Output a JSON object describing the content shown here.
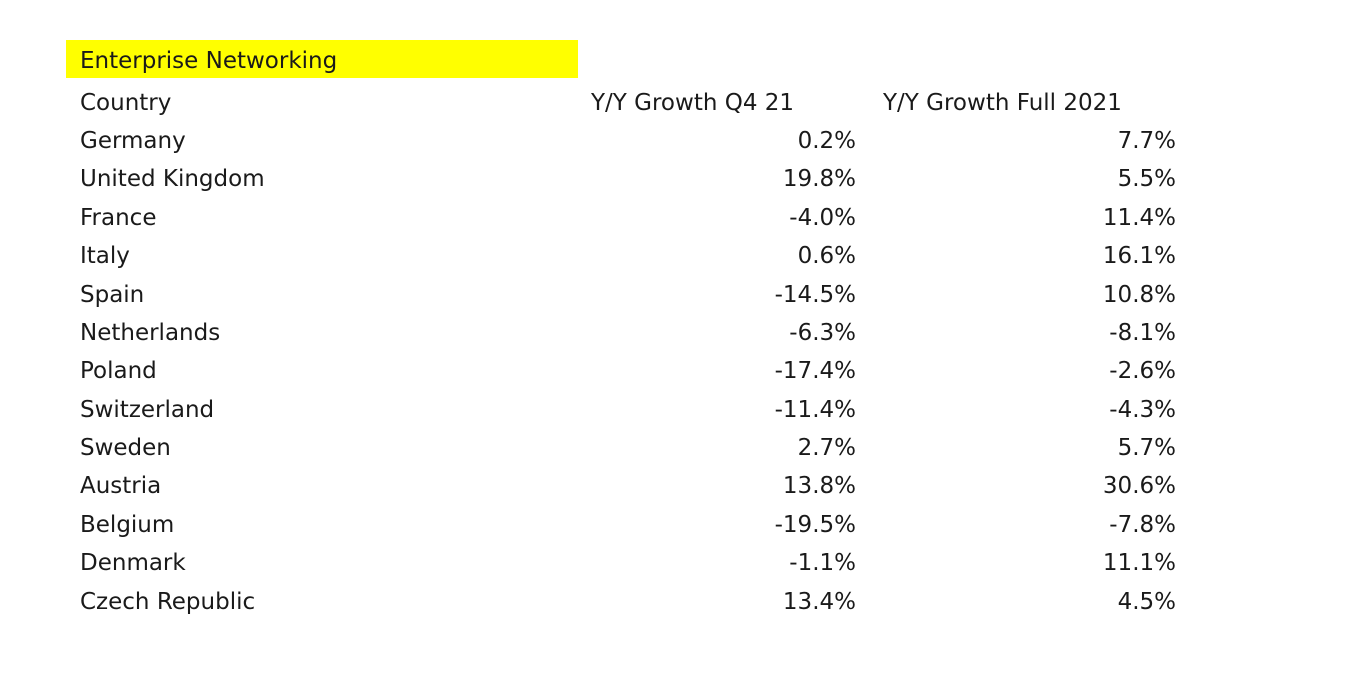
{
  "title": "Enterprise Networking",
  "highlight_color": "#ffff00",
  "headers": {
    "country": "Country",
    "q4": "Y/Y Growth Q4 21",
    "full": "Y/Y Growth Full 2021"
  },
  "rows": [
    {
      "country": "Germany",
      "q4": "0.2%",
      "full": "7.7%"
    },
    {
      "country": "United Kingdom",
      "q4": "19.8%",
      "full": "5.5%"
    },
    {
      "country": "France",
      "q4": "-4.0%",
      "full": "11.4%"
    },
    {
      "country": "Italy",
      "q4": "0.6%",
      "full": "16.1%"
    },
    {
      "country": "Spain",
      "q4": "-14.5%",
      "full": "10.8%"
    },
    {
      "country": "Netherlands",
      "q4": "-6.3%",
      "full": "-8.1%"
    },
    {
      "country": "Poland",
      "q4": "-17.4%",
      "full": "-2.6%"
    },
    {
      "country": "Switzerland",
      "q4": "-11.4%",
      "full": "-4.3%"
    },
    {
      "country": "Sweden",
      "q4": "2.7%",
      "full": "5.7%"
    },
    {
      "country": "Austria",
      "q4": "13.8%",
      "full": "30.6%"
    },
    {
      "country": "Belgium",
      "q4": "-19.5%",
      "full": "-7.8%"
    },
    {
      "country": "Denmark",
      "q4": "-1.1%",
      "full": "11.1%"
    },
    {
      "country": "Czech Republic",
      "q4": "13.4%",
      "full": "4.5%"
    }
  ]
}
